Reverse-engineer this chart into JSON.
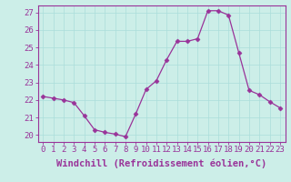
{
  "hours": [
    0,
    1,
    2,
    3,
    4,
    5,
    6,
    7,
    8,
    9,
    10,
    11,
    12,
    13,
    14,
    15,
    16,
    17,
    18,
    19,
    20,
    21,
    22,
    23
  ],
  "windchill": [
    22.2,
    22.1,
    22.0,
    21.85,
    21.1,
    20.3,
    20.15,
    20.05,
    19.9,
    21.2,
    22.6,
    23.1,
    24.3,
    25.35,
    25.35,
    25.5,
    27.1,
    27.1,
    26.85,
    24.7,
    22.55,
    22.3,
    21.9,
    21.55
  ],
  "line_color": "#993399",
  "marker": "D",
  "marker_size": 2.5,
  "bg_color": "#cceee8",
  "grid_color": "#aaddda",
  "axis_color": "#993399",
  "tick_color": "#993399",
  "label_color": "#993399",
  "xlabel": "Windchill (Refroidissement éolien,°C)",
  "ylim": [
    19.6,
    27.4
  ],
  "yticks": [
    20,
    21,
    22,
    23,
    24,
    25,
    26,
    27
  ],
  "label_fontsize": 7.5,
  "tick_fontsize": 6.5
}
